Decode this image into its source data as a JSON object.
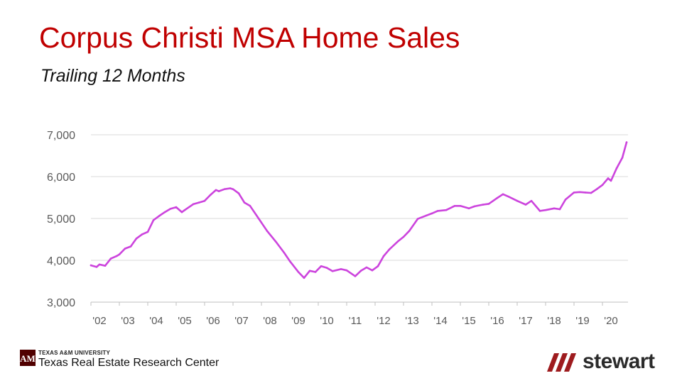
{
  "slide": {
    "title": "Corpus Christi MSA Home Sales",
    "subtitle": "Trailing 12 Months",
    "footer_org_small": "TEXAS A&M UNIVERSITY",
    "footer_org": "Texas Real Estate Research Center",
    "brand_logo_text": "stewart",
    "colors": {
      "title": "#c00000",
      "line": "#cc44dd",
      "brand_red": "#9e1b1e"
    },
    "icons": [
      "tamu-logo-icon",
      "stewart-slashes-icon"
    ]
  },
  "chart_data": {
    "type": "line",
    "title": "",
    "xlabel": "",
    "ylabel": "",
    "ylim": [
      3000,
      7000
    ],
    "xlim": [
      2002.0,
      2020.9
    ],
    "yticks": [
      3000,
      4000,
      5000,
      6000,
      7000
    ],
    "ytick_labels": [
      "3,000",
      "4,000",
      "5,000",
      "6,000",
      "7,000"
    ],
    "xtick_labels": [
      "'02",
      "'03",
      "'04",
      "'05",
      "'06",
      "'07",
      "'08",
      "'09",
      "'10",
      "'11",
      "'12",
      "'13",
      "'14",
      "'15",
      "'16",
      "'17",
      "'18",
      "'19",
      "'20"
    ],
    "xtick_years": [
      2002,
      2003,
      2004,
      2005,
      2006,
      2007,
      2008,
      2009,
      2010,
      2011,
      2012,
      2013,
      2014,
      2015,
      2016,
      2017,
      2018,
      2019,
      2020
    ],
    "grid": true,
    "series": [
      {
        "color": "#cc44dd",
        "x": [
          2002.0,
          2002.2,
          2002.3,
          2002.5,
          2002.7,
          2002.9,
          2003.0,
          2003.2,
          2003.4,
          2003.6,
          2003.8,
          2004.0,
          2004.2,
          2004.4,
          2004.6,
          2004.8,
          2005.0,
          2005.2,
          2005.3,
          2005.6,
          2005.8,
          2006.0,
          2006.2,
          2006.4,
          2006.5,
          2006.7,
          2006.9,
          2007.0,
          2007.2,
          2007.4,
          2007.6,
          2007.9,
          2008.2,
          2008.5,
          2008.8,
          2009.0,
          2009.3,
          2009.5,
          2009.7,
          2009.9,
          2010.1,
          2010.3,
          2010.5,
          2010.8,
          2011.0,
          2011.3,
          2011.5,
          2011.7,
          2011.9,
          2012.1,
          2012.3,
          2012.5,
          2012.8,
          2013.0,
          2013.2,
          2013.5,
          2013.8,
          2014.0,
          2014.2,
          2014.5,
          2014.8,
          2015.0,
          2015.3,
          2015.5,
          2015.8,
          2016.0,
          2016.3,
          2016.5,
          2016.7,
          2017.0,
          2017.3,
          2017.5,
          2017.8,
          2018.0,
          2018.3,
          2018.5,
          2018.7,
          2019.0,
          2019.2,
          2019.4,
          2019.6,
          2019.8,
          2020.0,
          2020.2,
          2020.3,
          2020.5,
          2020.7,
          2020.85
        ],
        "y": [
          3880,
          3840,
          3900,
          3870,
          4040,
          4100,
          4140,
          4280,
          4330,
          4520,
          4620,
          4680,
          4960,
          5060,
          5150,
          5230,
          5270,
          5150,
          5200,
          5340,
          5380,
          5420,
          5560,
          5680,
          5650,
          5700,
          5720,
          5700,
          5600,
          5380,
          5300,
          5000,
          4700,
          4450,
          4180,
          3980,
          3720,
          3580,
          3750,
          3720,
          3860,
          3820,
          3740,
          3790,
          3760,
          3620,
          3750,
          3830,
          3760,
          3860,
          4100,
          4260,
          4450,
          4560,
          4700,
          4990,
          5070,
          5120,
          5180,
          5200,
          5300,
          5300,
          5240,
          5290,
          5330,
          5350,
          5490,
          5580,
          5520,
          5420,
          5330,
          5420,
          5180,
          5200,
          5240,
          5220,
          5450,
          5620,
          5630,
          5620,
          5610,
          5700,
          5800,
          5960,
          5900,
          6200,
          6450,
          6820
        ]
      }
    ]
  }
}
